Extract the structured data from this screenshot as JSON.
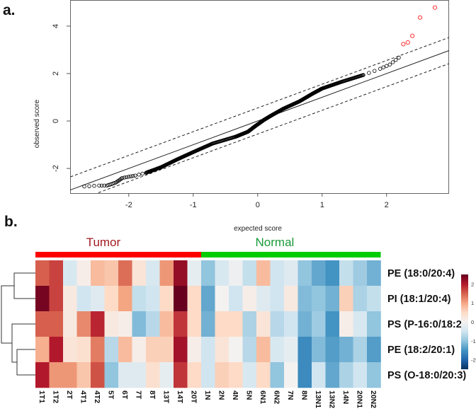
{
  "chart_data": [
    {
      "type": "scatter",
      "panel_label": "a.",
      "title": "",
      "xlabel": "expected score",
      "ylabel": "observed score",
      "xlim": [
        -2.91,
        2.97
      ],
      "ylim": [
        -3.04,
        5.1
      ],
      "xticks": [
        "-2",
        "-1",
        "0",
        "1",
        "2"
      ],
      "yticks": [
        "-2",
        "0",
        "2",
        "4"
      ],
      "reference_line": {
        "intercept": 0,
        "slope": 1.0,
        "style": "solid"
      },
      "envelope": {
        "upper_offset": 0.55,
        "lower_offset": -0.55,
        "style": "dashed"
      },
      "points_curve": [
        [
          -2.69,
          -2.76
        ],
        [
          -2.46,
          -2.72
        ],
        [
          -2.34,
          -2.72
        ],
        [
          -2.27,
          -2.66
        ],
        [
          -2.2,
          -2.59
        ],
        [
          -2.15,
          -2.5
        ],
        [
          -2.1,
          -2.4
        ],
        [
          -2.0,
          -2.35
        ],
        [
          -1.9,
          -2.3
        ],
        [
          -1.73,
          -2.18
        ],
        [
          -1.5,
          -1.95
        ],
        [
          -1.25,
          -1.62
        ],
        [
          -1.0,
          -1.31
        ],
        [
          -0.7,
          -0.95
        ],
        [
          -0.34,
          -0.66
        ],
        [
          -0.15,
          -0.45
        ],
        [
          -0.04,
          -0.22
        ],
        [
          0.1,
          0.05
        ],
        [
          0.21,
          0.23
        ],
        [
          0.4,
          0.52
        ],
        [
          0.65,
          0.83
        ],
        [
          0.85,
          1.15
        ],
        [
          1.0,
          1.37
        ],
        [
          1.3,
          1.65
        ],
        [
          1.64,
          1.94
        ],
        [
          1.9,
          2.2
        ],
        [
          2.05,
          2.38
        ],
        [
          2.19,
          2.67
        ]
      ],
      "outliers": [
        [
          2.26,
          3.24
        ],
        [
          2.33,
          3.31
        ],
        [
          2.4,
          3.59
        ],
        [
          2.52,
          4.36
        ],
        [
          2.75,
          4.78
        ]
      ],
      "colors": {
        "points": "#000000",
        "outliers": "#ff3333"
      }
    },
    {
      "type": "heatmap",
      "panel_label": "b.",
      "groups": [
        {
          "name": "Tumor",
          "count": 12,
          "bar_color": "#ff0000",
          "text_color": "#a31a1f"
        },
        {
          "name": "Normal",
          "count": 13,
          "bar_color": "#00cc00",
          "text_color": "#1a9a3a"
        }
      ],
      "columns": [
        "1T1",
        "1T2",
        "2T",
        "4T1",
        "4T2",
        "5T",
        "6T",
        "7T",
        "8T",
        "13T",
        "14T",
        "20T",
        "1N",
        "2N",
        "4N",
        "5N",
        "6N1",
        "6N2",
        "7N",
        "8N",
        "13N1",
        "13N2",
        "14N",
        "20N1",
        "20N2"
      ],
      "rows": [
        "PE (18:0/20:4)",
        "PI (18:1/20:4)",
        "PS (P-16:0/18:2)",
        "PE (18:2/20:1)",
        "PS (O-18:0/20:3)"
      ],
      "values": [
        [
          1.5,
          1.7,
          -0.4,
          0.1,
          0.8,
          0.7,
          1.4,
          0.3,
          -0.4,
          1.1,
          2.2,
          -0.2,
          -1.0,
          -0.4,
          -0.1,
          -0.6,
          0.8,
          -0.5,
          -0.3,
          -1.0,
          -1.3,
          -1.5,
          -0.6,
          -0.9,
          -1.2
        ],
        [
          2.4,
          1.7,
          0.2,
          -0.5,
          -0.3,
          0.5,
          1.0,
          -0.6,
          -0.5,
          0.5,
          2.6,
          0.5,
          -1.3,
          0.0,
          -0.5,
          0.1,
          -0.3,
          -0.5,
          0.2,
          -1.1,
          -1.0,
          -1.2,
          0.6,
          -0.8,
          -0.6
        ],
        [
          1.5,
          1.5,
          0.2,
          1.2,
          1.9,
          0.2,
          0.1,
          -1.1,
          -0.7,
          0.8,
          1.8,
          0.5,
          -1.2,
          0.5,
          0.5,
          -0.8,
          0.3,
          -0.7,
          -0.5,
          -1.2,
          -0.9,
          -1.5,
          0.1,
          -0.4,
          -1.0
        ],
        [
          0.9,
          2.0,
          0.3,
          0.4,
          1.3,
          -0.7,
          0.8,
          0.1,
          0.6,
          0.6,
          2.1,
          0.1,
          -0.5,
          0.3,
          0.0,
          -0.7,
          0.8,
          -0.4,
          -0.2,
          -1.6,
          -1.1,
          -1.4,
          -1.2,
          -0.8,
          -1.4
        ],
        [
          2.0,
          1.1,
          1.1,
          0.7,
          1.6,
          -1.0,
          -0.3,
          -0.3,
          0.4,
          -0.2,
          1.8,
          0.5,
          -0.5,
          0.6,
          0.5,
          -0.4,
          0.5,
          -1.0,
          0.0,
          -1.6,
          -0.5,
          -1.3,
          -0.8,
          -0.5,
          -1.0
        ]
      ],
      "color_scale": {
        "range": [
          -2.5,
          2.5
        ],
        "ticks": [
          "2",
          "1",
          "0",
          "-1",
          "-2"
        ],
        "palette": [
          "#053061",
          "#2166ac",
          "#4393c3",
          "#92c5de",
          "#d1e5f0",
          "#f4f2f0",
          "#fddbc7",
          "#f4a582",
          "#d6604d",
          "#b2182b",
          "#67001f"
        ]
      },
      "row_dendrogram": "((row1,row2),(row3,(row4,row5)))"
    }
  ]
}
